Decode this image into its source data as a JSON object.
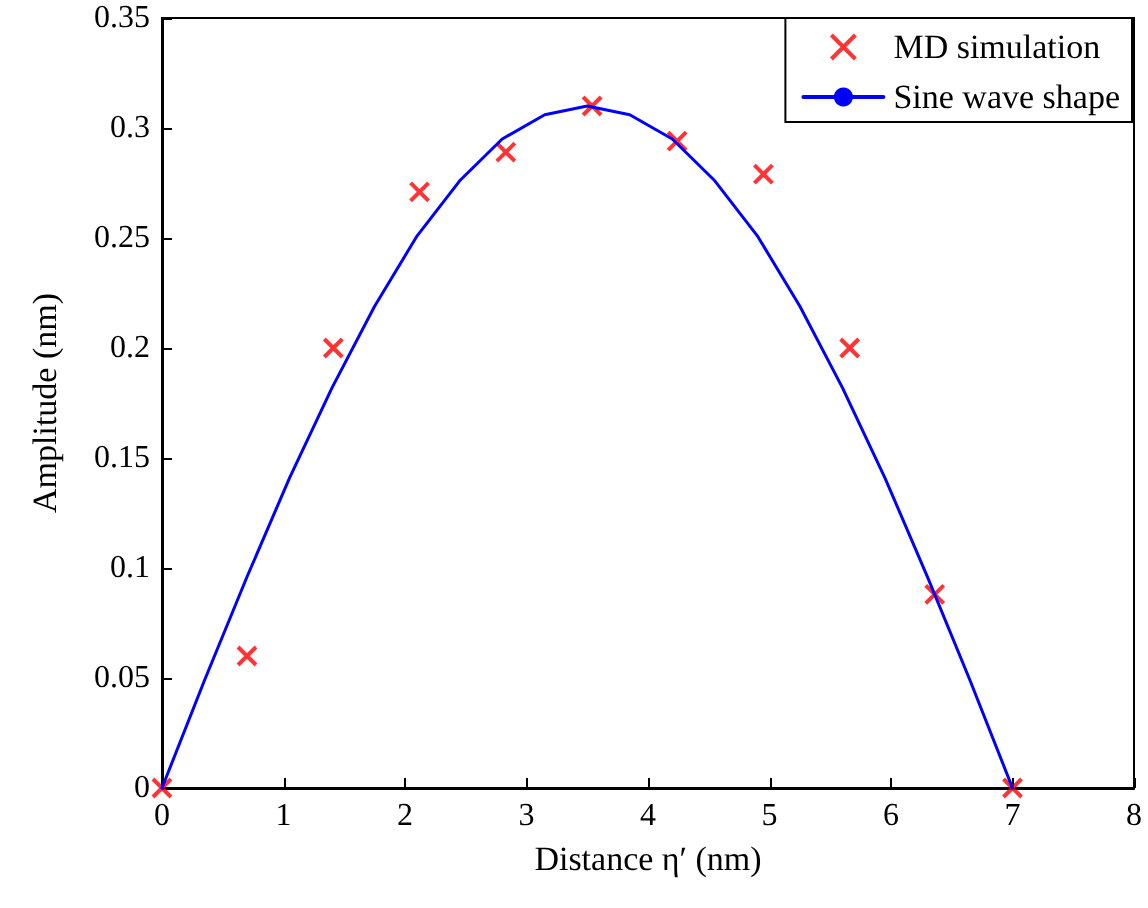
{
  "chart_data": {
    "type": "scatter",
    "xlabel": "Distance η′ (nm)",
    "ylabel": "Amplitude (nm)",
    "xlim": [
      0,
      8
    ],
    "xticks": [
      0,
      1,
      2,
      3,
      4,
      5,
      6,
      7,
      8
    ],
    "ylim": [
      0,
      0.35
    ],
    "yticks": [
      0,
      0.05,
      0.1,
      0.15,
      0.2,
      0.25,
      0.3,
      0.35
    ],
    "grid": false,
    "legend": "top right",
    "series": [
      {
        "name": "MD simulation",
        "type": "scatter",
        "marker": "cross",
        "color": "#ff0000",
        "x": [
          0,
          0.7,
          1.41,
          2.12,
          2.83,
          3.54,
          4.24,
          4.95,
          5.66,
          6.36,
          7
        ],
        "values": [
          0,
          0.06,
          0.2,
          0.271,
          0.289,
          0.31,
          0.294,
          0.279,
          0.2,
          0.088,
          0
        ]
      },
      {
        "name": "Sine wave shape",
        "type": "line",
        "marker": "none",
        "line_style": "solid",
        "color": "#0000ff",
        "x": [
          0,
          0.35,
          0.7,
          1.05,
          1.4,
          1.75,
          2.1,
          2.45,
          2.8,
          3.15,
          3.5,
          3.85,
          4.2,
          4.55,
          4.9,
          5.25,
          5.6,
          5.95,
          6.3,
          6.65,
          7
        ],
        "values": [
          0,
          0.049,
          0.096,
          0.141,
          0.182,
          0.219,
          0.251,
          0.276,
          0.295,
          0.306,
          0.31,
          0.306,
          0.295,
          0.276,
          0.251,
          0.219,
          0.182,
          0.141,
          0.096,
          0.049,
          0
        ]
      }
    ]
  }
}
